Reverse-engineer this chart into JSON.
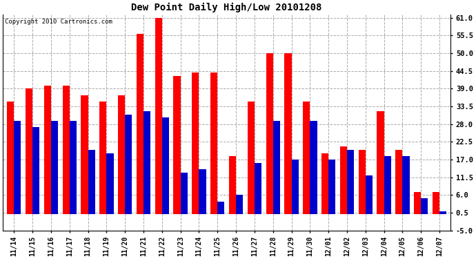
{
  "title": "Dew Point Daily High/Low 20101208",
  "copyright": "Copyright 2010 Cartronics.com",
  "labels": [
    "11/14",
    "11/15",
    "11/16",
    "11/17",
    "11/18",
    "11/19",
    "11/20",
    "11/21",
    "11/22",
    "11/23",
    "11/24",
    "11/25",
    "11/26",
    "11/27",
    "11/28",
    "11/29",
    "11/30",
    "12/01",
    "12/02",
    "12/03",
    "12/04",
    "12/05",
    "12/06",
    "12/07"
  ],
  "highs": [
    35,
    39,
    40,
    40,
    37,
    35,
    37,
    56,
    61,
    43,
    44,
    44,
    18,
    35,
    50,
    50,
    35,
    19,
    21,
    20,
    32,
    20,
    7,
    7
  ],
  "lows": [
    29,
    27,
    29,
    29,
    20,
    19,
    31,
    32,
    30,
    13,
    14,
    4,
    6,
    16,
    29,
    17,
    29,
    17,
    20,
    12,
    18,
    18,
    5,
    1
  ],
  "high_color": "#ff0000",
  "low_color": "#0000cc",
  "bg_color": "#ffffff",
  "grid_color": "#aaaaaa",
  "ymin": -5,
  "ymax": 62,
  "yticks": [
    -5.0,
    0.5,
    6.0,
    11.5,
    17.0,
    22.5,
    28.0,
    33.5,
    39.0,
    44.5,
    50.0,
    55.5,
    61.0
  ]
}
